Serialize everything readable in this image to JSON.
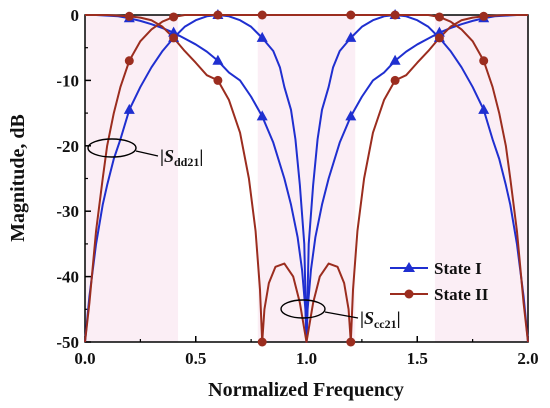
{
  "chart_data": {
    "type": "line",
    "title": "",
    "xlabel": "Normalized Frequency",
    "ylabel": "Magnitude, dB",
    "xlim": [
      0.0,
      2.0
    ],
    "ylim": [
      -50,
      0
    ],
    "xticks": [
      "0.0",
      "0.5",
      "1.0",
      "1.5",
      "2.0"
    ],
    "yticks": [
      "0",
      "-10",
      "-20",
      "-30",
      "-40",
      "-50"
    ],
    "legend_position": "bottom-right",
    "series": [
      {
        "name": "State I",
        "color": "#1f2fd0",
        "marker": "triangle",
        "curves": [
          {
            "label": "Sdd21",
            "x": [
              0.0,
              0.02,
              0.05,
              0.08,
              0.1,
              0.13,
              0.16,
              0.2,
              0.25,
              0.3,
              0.35,
              0.4,
              0.45,
              0.5,
              0.55,
              0.6,
              0.65,
              0.7,
              0.75,
              0.8,
              0.85,
              0.88,
              0.9,
              0.93,
              0.95,
              0.97,
              0.99,
              1.0,
              1.01,
              1.03,
              1.05,
              1.07,
              1.1,
              1.12,
              1.15,
              1.2,
              1.25,
              1.3,
              1.35,
              1.4,
              1.45,
              1.5,
              1.55,
              1.6,
              1.65,
              1.7,
              1.75,
              1.8,
              1.84,
              1.87,
              1.9,
              1.92,
              1.95,
              1.98,
              2.0
            ],
            "y": [
              -50,
              -43,
              -35,
              -29,
              -26,
              -22,
              -19,
              -14.5,
              -11,
              -8,
              -5.5,
              -3.5,
              -1.8,
              -0.8,
              -0.2,
              0,
              -0.2,
              -0.8,
              -1.8,
              -3.5,
              -5.5,
              -8,
              -11,
              -14.5,
              -19,
              -26,
              -35,
              -50,
              -35,
              -26,
              -19,
              -14.5,
              -11,
              -8,
              -5.5,
              -3.5,
              -1.8,
              -0.8,
              -0.2,
              0,
              -0.2,
              -0.8,
              -1.8,
              -3.5,
              -5.5,
              -8,
              -11,
              -14.5,
              -19,
              -22,
              -26,
              -29,
              -35,
              -43,
              -50
            ]
          },
          {
            "label": "Scc21",
            "x": [
              0.0,
              0.05,
              0.1,
              0.15,
              0.2,
              0.25,
              0.3,
              0.35,
              0.4,
              0.45,
              0.5,
              0.55,
              0.6,
              0.65,
              0.7,
              0.75,
              0.8,
              0.85,
              0.9,
              0.93,
              0.96,
              0.98,
              0.995,
              1.0,
              1.005,
              1.02,
              1.04,
              1.07,
              1.1,
              1.15,
              1.2,
              1.25,
              1.3,
              1.35,
              1.4,
              1.45,
              1.5,
              1.55,
              1.6,
              1.65,
              1.7,
              1.75,
              1.8,
              1.85,
              1.9,
              1.95,
              2.0
            ],
            "y": [
              0,
              0,
              -0.1,
              -0.2,
              -0.5,
              -0.9,
              -1.4,
              -2.0,
              -2.7,
              -3.6,
              -4.5,
              -5.6,
              -7.0,
              -8.8,
              -10.0,
              -12.5,
              -15.5,
              -19.5,
              -25,
              -29,
              -34,
              -39,
              -45,
              -50,
              -45,
              -39,
              -34,
              -29,
              -25,
              -19.5,
              -15.5,
              -12.5,
              -10.0,
              -8.8,
              -7.0,
              -5.6,
              -4.5,
              -3.6,
              -2.7,
              -2.0,
              -1.4,
              -0.9,
              -0.5,
              -0.2,
              -0.1,
              0,
              0
            ]
          }
        ],
        "marker_x": [
          0.2,
          0.4,
          0.6,
          0.8,
          1.2,
          1.4,
          1.6,
          1.8
        ]
      },
      {
        "name": "State II",
        "color": "#9b2d1f",
        "marker": "circle",
        "curves": [
          {
            "label": "Sdd21",
            "x": [
              0.0,
              0.02,
              0.05,
              0.08,
              0.1,
              0.13,
              0.16,
              0.2,
              0.25,
              0.3,
              0.35,
              0.4,
              0.45,
              0.5,
              0.55,
              0.6,
              0.65,
              0.7,
              0.75,
              0.8,
              0.85,
              0.9,
              0.95,
              1.0,
              1.05,
              1.1,
              1.15,
              1.2,
              1.25,
              1.3,
              1.35,
              1.4,
              1.45,
              1.5,
              1.55,
              1.6,
              1.65,
              1.7,
              1.75,
              1.8,
              1.84,
              1.87,
              1.9,
              1.92,
              1.95,
              1.98,
              2.0
            ],
            "y": [
              -50,
              -44,
              -33,
              -25,
              -20,
              -15,
              -11,
              -7,
              -4,
              -2.2,
              -1.0,
              -0.3,
              0,
              0,
              0,
              0,
              0,
              0,
              0,
              0,
              0,
              0,
              0,
              0,
              0,
              0,
              0,
              0,
              0,
              0,
              0,
              0,
              0,
              0,
              0,
              -0.3,
              -1.0,
              -2.2,
              -4,
              -7,
              -11,
              -15,
              -20,
              -25,
              -33,
              -44,
              -50
            ]
          },
          {
            "label": "Scc21",
            "x": [
              0.0,
              0.05,
              0.1,
              0.15,
              0.2,
              0.25,
              0.3,
              0.35,
              0.4,
              0.45,
              0.5,
              0.55,
              0.6,
              0.65,
              0.7,
              0.74,
              0.77,
              0.79,
              0.8,
              0.81,
              0.83,
              0.86,
              0.9,
              0.94,
              0.97,
              0.99,
              1.0,
              1.01,
              1.03,
              1.06,
              1.1,
              1.14,
              1.17,
              1.19,
              1.2,
              1.21,
              1.23,
              1.26,
              1.3,
              1.35,
              1.4,
              1.45,
              1.5,
              1.55,
              1.6,
              1.65,
              1.7,
              1.75,
              1.8,
              1.85,
              1.9,
              1.95,
              2.0
            ],
            "y": [
              0,
              0,
              0,
              -0.1,
              -0.2,
              -0.4,
              -0.8,
              -1.8,
              -3.5,
              -5.5,
              -7.3,
              -9.2,
              -10.0,
              -13,
              -18,
              -25,
              -33,
              -42,
              -50,
              -45,
              -41,
              -38.5,
              -38,
              -40,
              -44,
              -48,
              -50,
              -48,
              -44,
              -40,
              -38,
              -38.5,
              -41,
              -45,
              -50,
              -42,
              -33,
              -25,
              -18,
              -13,
              -10.0,
              -9.2,
              -7.3,
              -5.5,
              -3.5,
              -1.8,
              -0.8,
              -0.4,
              -0.2,
              -0.1,
              0,
              0,
              0
            ]
          }
        ],
        "marker_x": [
          0.2,
          0.4,
          0.6,
          0.8,
          1.2,
          1.4,
          1.6,
          1.8
        ]
      }
    ],
    "annotations": [
      {
        "text": "|Sdd21|",
        "main": "S",
        "sub": "dd21"
      },
      {
        "text": "|Scc21|",
        "main": "S",
        "sub": "cc21"
      }
    ]
  }
}
